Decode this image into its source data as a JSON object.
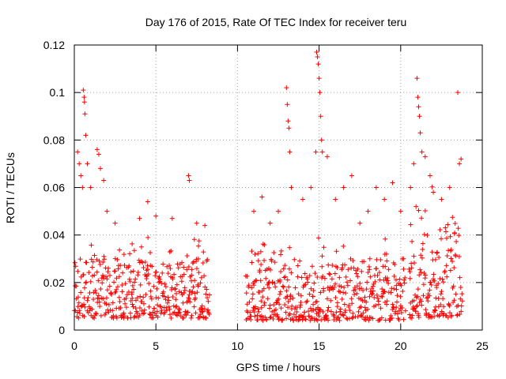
{
  "chart_data": {
    "type": "scatter",
    "title": "Day 176 of 2015, Rate Of TEC Index for receiver teru",
    "xlabel": "GPS time / hours",
    "ylabel": "ROTI / TECUs",
    "xlim": [
      0,
      25
    ],
    "ylim": [
      0,
      0.12
    ],
    "x_ticks": [
      0,
      5,
      10,
      15,
      20,
      25
    ],
    "x_tick_labels": [
      "0",
      "5",
      "10",
      "15",
      "20",
      "25"
    ],
    "y_ticks": [
      0,
      0.02,
      0.04,
      0.06,
      0.08,
      0.1,
      0.12
    ],
    "y_tick_labels": [
      "0",
      "0.02",
      "0.04",
      "0.06",
      "0.08",
      "0.1",
      "0.12"
    ],
    "grid": true,
    "marker": "+",
    "marker_color": "#ff0000",
    "point_count_per_hour": 40,
    "segments": [
      {
        "x_start": 0.0,
        "x_end": 8.3,
        "typical_range": [
          0.005,
          0.03
        ]
      },
      {
        "x_start": 10.5,
        "x_end": 20.3,
        "typical_range": [
          0.004,
          0.03
        ]
      },
      {
        "x_start": 20.5,
        "x_end": 23.8,
        "typical_range": [
          0.005,
          0.045
        ]
      }
    ],
    "series_points": [
      [
        0.2,
        0.075
      ],
      [
        0.3,
        0.07
      ],
      [
        0.4,
        0.065
      ],
      [
        0.5,
        0.06
      ],
      [
        0.55,
        0.101
      ],
      [
        0.6,
        0.098
      ],
      [
        0.62,
        0.096
      ],
      [
        0.65,
        0.091
      ],
      [
        0.7,
        0.082
      ],
      [
        0.8,
        0.07
      ],
      [
        1.0,
        0.06
      ],
      [
        1.4,
        0.076
      ],
      [
        1.5,
        0.074
      ],
      [
        1.6,
        0.068
      ],
      [
        1.8,
        0.063
      ],
      [
        2.0,
        0.05
      ],
      [
        2.5,
        0.045
      ],
      [
        4.0,
        0.047
      ],
      [
        4.5,
        0.054
      ],
      [
        5.0,
        0.048
      ],
      [
        6.0,
        0.047
      ],
      [
        7.0,
        0.065
      ],
      [
        7.05,
        0.063
      ],
      [
        7.5,
        0.045
      ],
      [
        8.0,
        0.044
      ],
      [
        11.0,
        0.05
      ],
      [
        11.5,
        0.056
      ],
      [
        12.0,
        0.045
      ],
      [
        12.5,
        0.05
      ],
      [
        13.0,
        0.102
      ],
      [
        13.05,
        0.095
      ],
      [
        13.1,
        0.088
      ],
      [
        13.15,
        0.085
      ],
      [
        13.2,
        0.075
      ],
      [
        13.3,
        0.06
      ],
      [
        14.0,
        0.055
      ],
      [
        14.5,
        0.06
      ],
      [
        14.8,
        0.075
      ],
      [
        14.85,
        0.117
      ],
      [
        14.9,
        0.115
      ],
      [
        14.95,
        0.112
      ],
      [
        15.0,
        0.106
      ],
      [
        15.05,
        0.1
      ],
      [
        15.1,
        0.09
      ],
      [
        15.15,
        0.08
      ],
      [
        15.2,
        0.075
      ],
      [
        15.5,
        0.073
      ],
      [
        16.0,
        0.055
      ],
      [
        16.5,
        0.06
      ],
      [
        17.0,
        0.065
      ],
      [
        17.5,
        0.045
      ],
      [
        18.0,
        0.05
      ],
      [
        18.5,
        0.06
      ],
      [
        19.0,
        0.055
      ],
      [
        19.5,
        0.062
      ],
      [
        20.0,
        0.05
      ],
      [
        20.6,
        0.06
      ],
      [
        20.8,
        0.07
      ],
      [
        21.0,
        0.106
      ],
      [
        21.05,
        0.098
      ],
      [
        21.1,
        0.094
      ],
      [
        21.15,
        0.09
      ],
      [
        21.2,
        0.083
      ],
      [
        21.3,
        0.075
      ],
      [
        21.5,
        0.073
      ],
      [
        21.8,
        0.065
      ],
      [
        22.0,
        0.058
      ],
      [
        22.5,
        0.055
      ],
      [
        23.0,
        0.06
      ],
      [
        23.5,
        0.1
      ],
      [
        23.6,
        0.07
      ],
      [
        23.7,
        0.072
      ]
    ]
  }
}
